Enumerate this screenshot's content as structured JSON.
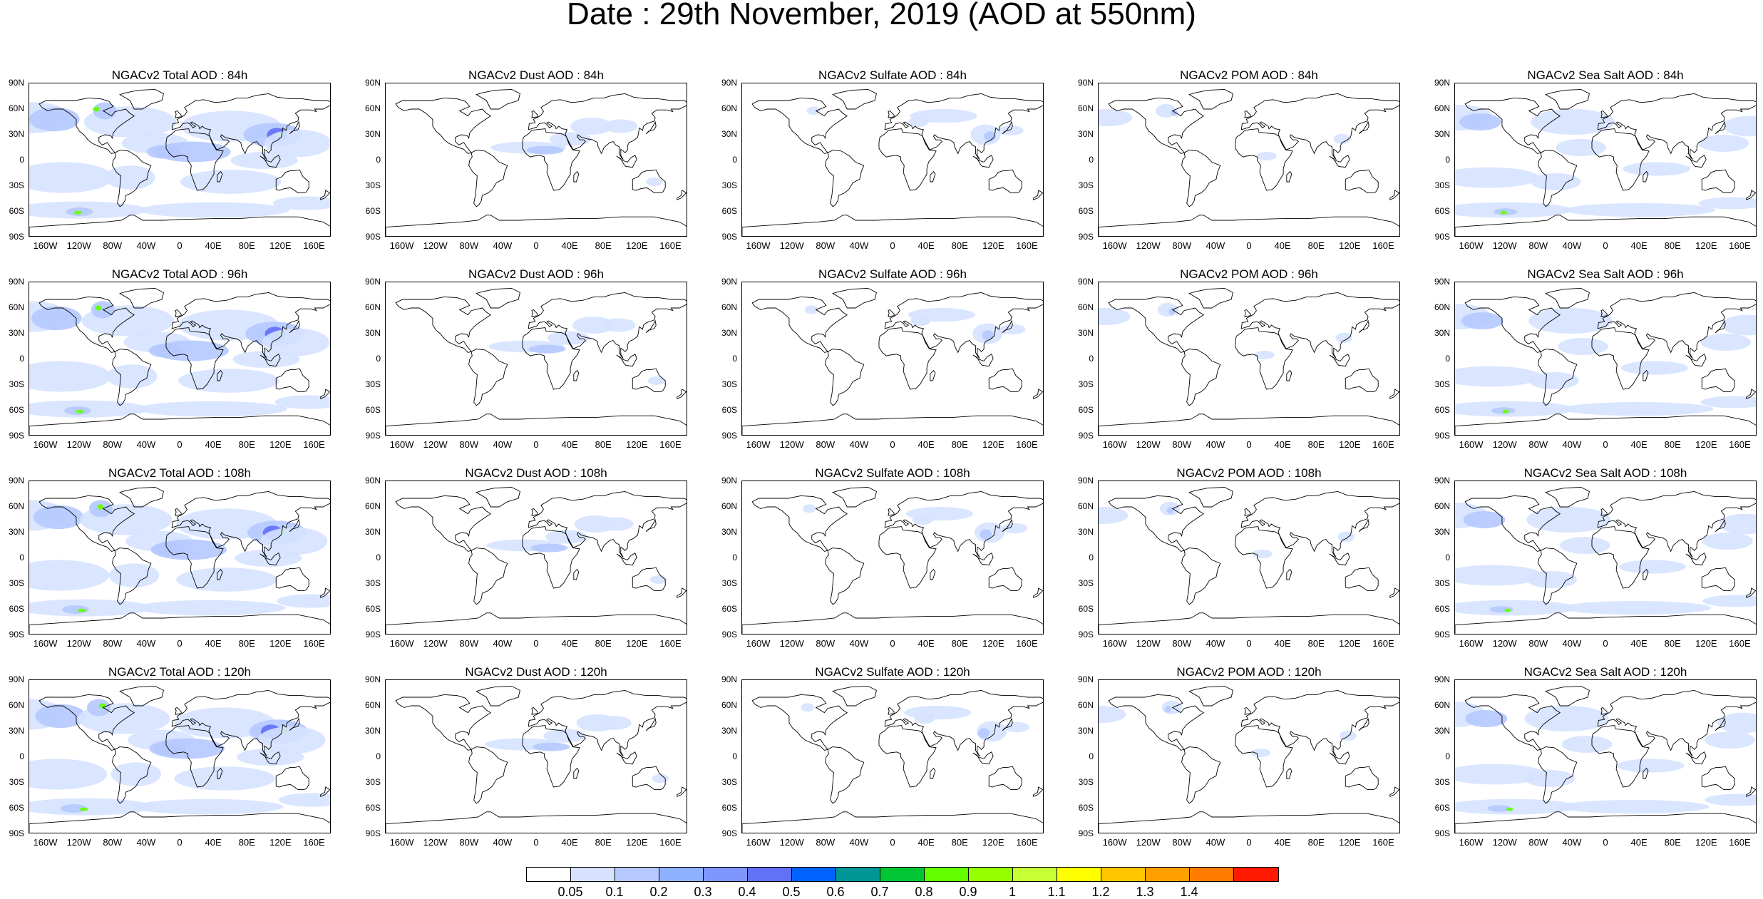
{
  "figure": {
    "title": "Date : 29th November, 2019 (AOD at 550nm)"
  },
  "panels": [
    [
      "NGACv2 Total AOD : 84h",
      "NGACv2 Dust AOD : 84h",
      "NGACv2 Sulfate AOD : 84h",
      "NGACv2 POM AOD : 84h",
      "NGACv2 Sea Salt AOD : 84h"
    ],
    [
      "NGACv2 Total AOD : 96h",
      "NGACv2 Dust AOD : 96h",
      "NGACv2 Sulfate AOD : 96h",
      "NGACv2 POM AOD : 96h",
      "NGACv2 Sea Salt AOD : 96h"
    ],
    [
      "NGACv2 Total AOD : 108h",
      "NGACv2 Dust AOD : 108h",
      "NGACv2 Sulfate AOD : 108h",
      "NGACv2 POM AOD : 108h",
      "NGACv2 Sea Salt AOD : 108h"
    ],
    [
      "NGACv2 Total AOD : 120h",
      "NGACv2 Dust AOD : 120h",
      "NGACv2 Sulfate AOD : 120h",
      "NGACv2 POM AOD : 120h",
      "NGACv2 Sea Salt  AOD : 120h"
    ]
  ],
  "lat_labels": [
    "90N",
    "60N",
    "30N",
    "0",
    "30S",
    "60S",
    "90S"
  ],
  "lon_labels": [
    "160W",
    "120W",
    "80W",
    "40W",
    "0",
    "40E",
    "80E",
    "120E",
    "160E"
  ],
  "colorbar": {
    "levels": [
      "0.05",
      "0.1",
      "0.2",
      "0.3",
      "0.4",
      "0.5",
      "0.6",
      "0.7",
      "0.8",
      "0.9",
      "1",
      "1.1",
      "1.2",
      "1.3",
      "1.4"
    ],
    "colors": [
      "#ffffff",
      "#d6e2ff",
      "#b5c9ff",
      "#8eb2ff",
      "#7f96ff",
      "#6370f8",
      "#0063ff",
      "#009696",
      "#00c633",
      "#63ff00",
      "#96ff00",
      "#c6ff33",
      "#ffff00",
      "#ffc600",
      "#ffa000",
      "#ff7c00",
      "#ff1900"
    ]
  },
  "field_colors": {
    "light": "#d6e2ff",
    "medium": "#b5c9ff",
    "strong": "#8eb2ff",
    "deep": "#6370f8",
    "hotspot": "#63ff00"
  }
}
